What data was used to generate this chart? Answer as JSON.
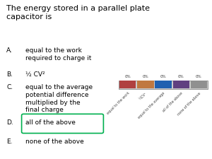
{
  "title": "The energy stored in a parallel plate\ncapacitor is",
  "options": [
    {
      "label": "A.",
      "text": "equal to the work\nrequired to charge it"
    },
    {
      "label": "B.",
      "text": "½ CV²"
    },
    {
      "label": "C.",
      "text": "equal to the average\npotential difference\nmultiplied by the\nfinal charge"
    },
    {
      "label": "D.",
      "text": "all of the above",
      "highlight": true
    },
    {
      "label": "E.",
      "text": "none of the above"
    }
  ],
  "bar_percentages": [
    "0%",
    "0%",
    "0%",
    "0%",
    "0%"
  ],
  "bar_labels": [
    "equal to the work\nrequired...",
    "½CV²",
    "equal to the average\npot...",
    "all of the above",
    "none of the above"
  ],
  "seg_colors": [
    "#b04040",
    "#c07840",
    "#2060b0",
    "#604080",
    "#909090"
  ],
  "background_color": "#ffffff",
  "text_color": "#000000",
  "highlight_color": "#00b050",
  "title_fontsize": 8.0,
  "option_fontsize": 6.5,
  "bar_fontsize": 4.0
}
